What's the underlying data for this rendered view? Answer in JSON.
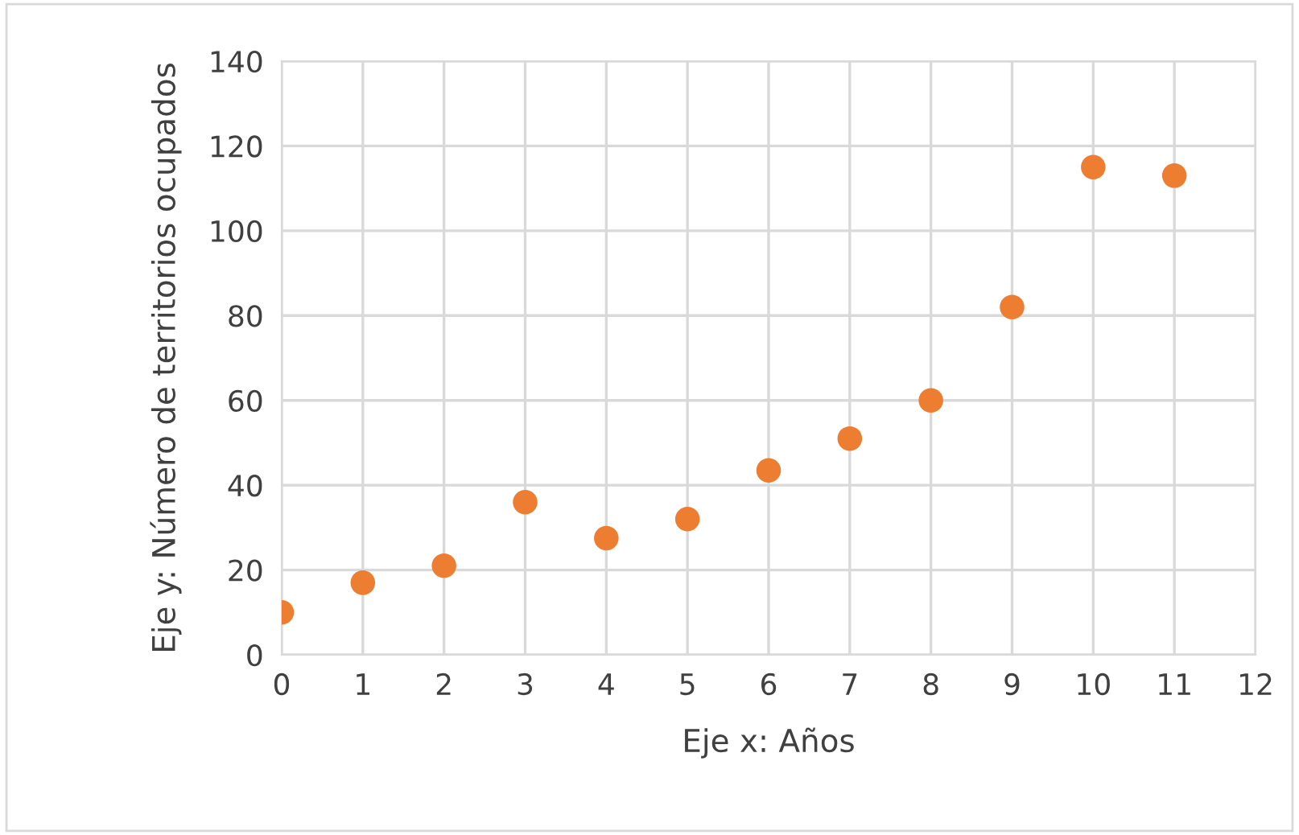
{
  "chart_data": {
    "type": "scatter",
    "xlabel": "Eje x: Años",
    "ylabel": "Eje y: Número de territorios ocupados",
    "x": [
      0,
      1,
      2,
      3,
      4,
      5,
      6,
      7,
      8,
      9,
      10,
      11
    ],
    "series": [
      {
        "color": "#ed7d31",
        "values": [
          10,
          17,
          21,
          36,
          27.5,
          32,
          43.5,
          51,
          60,
          82,
          115,
          113
        ]
      }
    ],
    "xlim": [
      0,
      12
    ],
    "xticks": [
      0,
      1,
      2,
      3,
      4,
      5,
      6,
      7,
      8,
      9,
      10,
      11,
      12
    ],
    "ylim": [
      0,
      140
    ],
    "yticks": [
      0,
      20,
      40,
      60,
      80,
      100,
      120,
      140
    ],
    "grid": true,
    "marker": "circle"
  }
}
